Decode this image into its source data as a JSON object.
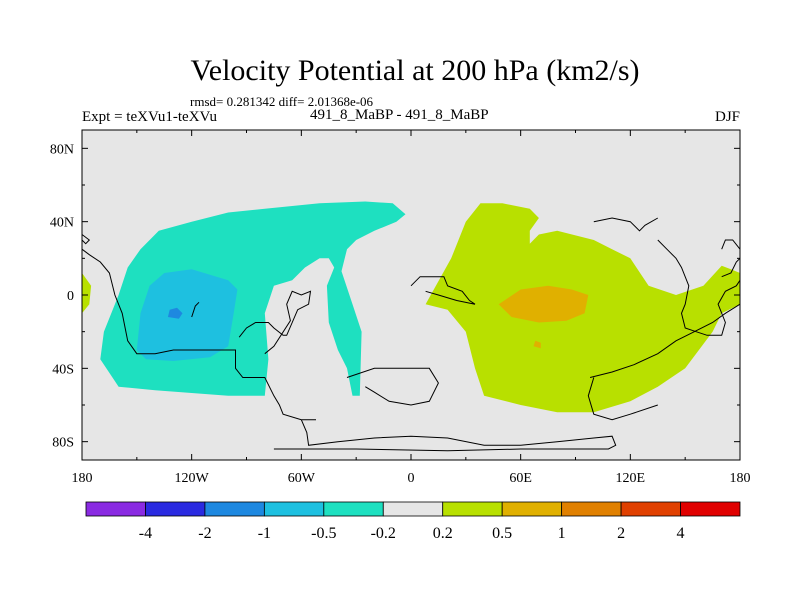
{
  "chart_data": {
    "type": "contour-map",
    "title": "Velocity Potential at 200 hPa (km2/s)",
    "stats": {
      "rmsd": "0.281342",
      "diff": "2.01368e-06"
    },
    "stats_line": "rmsd= 0.281342 diff= 2.01368e-06",
    "left_string": "Expt = teXVu1-teXVu",
    "center_string": "491_8_MaBP - 491_8_MaBP",
    "right_string": "DJF",
    "x_axis": {
      "range": [
        -180,
        180
      ],
      "ticks": [
        -180,
        -120,
        -60,
        0,
        60,
        120,
        180
      ],
      "tick_labels": [
        "180",
        "120W",
        "60W",
        "0",
        "60E",
        "120E",
        "180"
      ]
    },
    "y_axis": {
      "range": [
        -90,
        90
      ],
      "ticks": [
        80,
        40,
        0,
        -40,
        -80
      ],
      "tick_labels": [
        "80N",
        "40N",
        "0",
        "40S",
        "80S"
      ]
    },
    "colorbar": {
      "levels": [
        "-4",
        "-2",
        "-1",
        "-0.5",
        "-0.2",
        "0.2",
        "0.5",
        "1",
        "2",
        "4"
      ],
      "colors": [
        "#8a2be2",
        "#2a2ae0",
        "#1e88e0",
        "#1ec0e0",
        "#1ee0c0",
        "#e6e6e6",
        "#b8e000",
        "#e0b000",
        "#e08000",
        "#e04000",
        "#e00000"
      ]
    },
    "fields": [
      {
        "name": "negative-anomaly-outer",
        "level": "-0.5 to -0.2",
        "color": "#1ee0c0",
        "outline": [
          [
            -160,
            -50
          ],
          [
            -140,
            -52
          ],
          [
            -100,
            -55
          ],
          [
            -80,
            -55
          ],
          [
            -78,
            -35
          ],
          [
            -80,
            -10
          ],
          [
            -75,
            5
          ],
          [
            -65,
            8
          ],
          [
            -58,
            15
          ],
          [
            -50,
            20
          ],
          [
            -45,
            20
          ],
          [
            -42,
            15
          ],
          [
            -46,
            5
          ],
          [
            -45,
            -15
          ],
          [
            -40,
            -30
          ],
          [
            -35,
            -40
          ],
          [
            -32,
            -55
          ],
          [
            -28,
            -55
          ],
          [
            -27,
            -20
          ],
          [
            -32,
            -5
          ],
          [
            -38,
            13
          ],
          [
            -35,
            25
          ],
          [
            -30,
            30
          ],
          [
            -20,
            35
          ],
          [
            -8,
            40
          ],
          [
            -3,
            44
          ],
          [
            -10,
            50
          ],
          [
            -25,
            51
          ],
          [
            -50,
            50
          ],
          [
            -80,
            47
          ],
          [
            -100,
            45
          ],
          [
            -120,
            40
          ],
          [
            -138,
            35
          ],
          [
            -148,
            25
          ],
          [
            -155,
            15
          ],
          [
            -160,
            0
          ],
          [
            -168,
            -20
          ],
          [
            -170,
            -35
          ]
        ]
      },
      {
        "name": "negative-anomaly-inner",
        "level": "-1 to -0.5",
        "color": "#1ec0e0",
        "outline": [
          [
            -150,
            -30
          ],
          [
            -145,
            -35
          ],
          [
            -130,
            -36
          ],
          [
            -110,
            -34
          ],
          [
            -100,
            -28
          ],
          [
            -97,
            -10
          ],
          [
            -95,
            3
          ],
          [
            -100,
            8
          ],
          [
            -120,
            14
          ],
          [
            -135,
            12
          ],
          [
            -143,
            5
          ],
          [
            -148,
            -10
          ]
        ]
      },
      {
        "name": "negative-anomaly-core",
        "level": "-2 to -1",
        "color": "#1e88e0",
        "outline": [
          [
            -133,
            -12
          ],
          [
            -127,
            -13
          ],
          [
            -125,
            -10
          ],
          [
            -128,
            -7
          ],
          [
            -132,
            -8
          ]
        ]
      },
      {
        "name": "positive-anomaly-outer",
        "level": "0.2 to 0.5",
        "color": "#b8e000",
        "outline": [
          [
            8,
            -5
          ],
          [
            20,
            -8
          ],
          [
            30,
            -20
          ],
          [
            35,
            -40
          ],
          [
            40,
            -55
          ],
          [
            60,
            -60
          ],
          [
            80,
            -64
          ],
          [
            100,
            -64
          ],
          [
            120,
            -58
          ],
          [
            135,
            -50
          ],
          [
            150,
            -40
          ],
          [
            165,
            -20
          ],
          [
            170,
            -10
          ],
          [
            180,
            -5
          ],
          [
            180,
            12
          ],
          [
            175,
            14
          ],
          [
            170,
            16
          ],
          [
            160,
            5
          ],
          [
            145,
            0
          ],
          [
            130,
            5
          ],
          [
            120,
            20
          ],
          [
            110,
            25
          ],
          [
            100,
            30
          ],
          [
            80,
            35
          ],
          [
            70,
            33
          ],
          [
            65,
            28
          ],
          [
            65,
            35
          ],
          [
            70,
            42
          ],
          [
            65,
            47
          ],
          [
            50,
            50
          ],
          [
            38,
            50
          ],
          [
            30,
            40
          ],
          [
            22,
            20
          ]
        ]
      },
      {
        "name": "positive-anomaly-inner",
        "level": "0.5 to 1",
        "color": "#e0b000",
        "outline": [
          [
            48,
            -5
          ],
          [
            55,
            -12
          ],
          [
            70,
            -15
          ],
          [
            85,
            -14
          ],
          [
            95,
            -10
          ],
          [
            97,
            0
          ],
          [
            88,
            3
          ],
          [
            75,
            5
          ],
          [
            60,
            3
          ]
        ]
      },
      {
        "name": "positive-anomaly-spot",
        "level": "0.5 to 1",
        "color": "#e0b000",
        "outline": [
          [
            67,
            -28
          ],
          [
            71,
            -29
          ],
          [
            71,
            -26
          ],
          [
            68,
            -25
          ]
        ]
      },
      {
        "name": "west-edge-patch",
        "level": "0.2 to 0.5",
        "color": "#b8e000",
        "outline": [
          [
            -180,
            -10
          ],
          [
            -176,
            -5
          ],
          [
            -175,
            5
          ],
          [
            -180,
            12
          ]
        ]
      }
    ],
    "land_contours": [
      [
        [
          -180,
          25
        ],
        [
          -176,
          22
        ],
        [
          -170,
          18
        ],
        [
          -165,
          12
        ],
        [
          -162,
          0
        ],
        [
          -158,
          -10
        ],
        [
          -155,
          -25
        ],
        [
          -150,
          -32
        ],
        [
          -140,
          -32
        ],
        [
          -130,
          -30
        ],
        [
          -120,
          -30
        ],
        [
          -108,
          -30
        ],
        [
          -96,
          -30
        ],
        [
          -96,
          -40
        ],
        [
          -92,
          -45
        ],
        [
          -80,
          -45
        ],
        [
          -75,
          -55
        ],
        [
          -72,
          -60
        ],
        [
          -70,
          -65
        ],
        [
          -60,
          -68
        ],
        [
          -52,
          -68
        ]
      ],
      [
        [
          -60,
          -68
        ],
        [
          -57,
          -75
        ],
        [
          -56,
          -82
        ],
        [
          -40,
          -80
        ],
        [
          -20,
          -78
        ],
        [
          0,
          -77
        ],
        [
          20,
          -78
        ],
        [
          40,
          -82
        ],
        [
          60,
          -82
        ],
        [
          80,
          -80
        ],
        [
          100,
          -78
        ],
        [
          110,
          -77
        ],
        [
          112,
          -82
        ],
        [
          108,
          -84
        ],
        [
          90,
          -84
        ],
        [
          60,
          -84
        ],
        [
          20,
          -85
        ],
        [
          -30,
          -84
        ],
        [
          -75,
          -84
        ]
      ],
      [
        [
          -94,
          -23
        ],
        [
          -90,
          -18
        ],
        [
          -85,
          -15
        ],
        [
          -78,
          -15
        ],
        [
          -75,
          -18
        ],
        [
          -70,
          -22
        ],
        [
          -68,
          -22
        ],
        [
          -62,
          -8
        ],
        [
          -56,
          -5
        ],
        [
          -55,
          2
        ],
        [
          -60,
          0
        ],
        [
          -65,
          2
        ],
        [
          -68,
          -5
        ],
        [
          -66,
          -14
        ],
        [
          -75,
          -28
        ],
        [
          -80,
          -32
        ]
      ],
      [
        [
          -120,
          -12
        ],
        [
          -118,
          -6
        ],
        [
          -116,
          -4
        ]
      ],
      [
        [
          -35,
          -45
        ],
        [
          -20,
          -40
        ],
        [
          -5,
          -40
        ],
        [
          10,
          -40
        ],
        [
          15,
          -48
        ],
        [
          10,
          -58
        ],
        [
          0,
          -60
        ],
        [
          -12,
          -58
        ],
        [
          -20,
          -53
        ],
        [
          -25,
          -50
        ]
      ],
      [
        [
          0,
          5
        ],
        [
          5,
          10
        ],
        [
          12,
          10
        ],
        [
          18,
          10
        ],
        [
          20,
          5
        ],
        [
          28,
          2
        ],
        [
          32,
          -3
        ],
        [
          35,
          -5
        ],
        [
          25,
          -3
        ],
        [
          15,
          0
        ],
        [
          8,
          2
        ]
      ],
      [
        [
          98,
          -45
        ],
        [
          110,
          -42
        ],
        [
          122,
          -38
        ],
        [
          135,
          -32
        ],
        [
          145,
          -25
        ],
        [
          155,
          -20
        ],
        [
          165,
          -15
        ],
        [
          172,
          -10
        ],
        [
          180,
          -5
        ]
      ],
      [
        [
          100,
          -45
        ],
        [
          97,
          -55
        ],
        [
          100,
          -65
        ],
        [
          110,
          -68
        ],
        [
          120,
          -65
        ],
        [
          135,
          -60
        ]
      ],
      [
        [
          170,
          10
        ],
        [
          175,
          12
        ],
        [
          178,
          18
        ],
        [
          180,
          20
        ]
      ],
      [
        [
          135,
          30
        ],
        [
          140,
          25
        ],
        [
          145,
          20
        ],
        [
          148,
          15
        ],
        [
          152,
          5
        ],
        [
          150,
          -5
        ],
        [
          148,
          -10
        ],
        [
          150,
          -18
        ],
        [
          156,
          -20
        ],
        [
          162,
          -22
        ],
        [
          170,
          -22
        ],
        [
          172,
          -15
        ],
        [
          168,
          -5
        ],
        [
          172,
          2
        ],
        [
          178,
          5
        ],
        [
          180,
          8
        ]
      ],
      [
        [
          100,
          40
        ],
        [
          110,
          42
        ],
        [
          120,
          40
        ],
        [
          125,
          35
        ],
        [
          128,
          38
        ],
        [
          135,
          42
        ]
      ],
      [
        [
          170,
          25
        ],
        [
          172,
          30
        ],
        [
          176,
          30
        ],
        [
          180,
          25
        ]
      ],
      [
        [
          -180,
          30
        ],
        [
          -178,
          28
        ],
        [
          -176,
          30
        ],
        [
          -180,
          33
        ]
      ]
    ]
  }
}
